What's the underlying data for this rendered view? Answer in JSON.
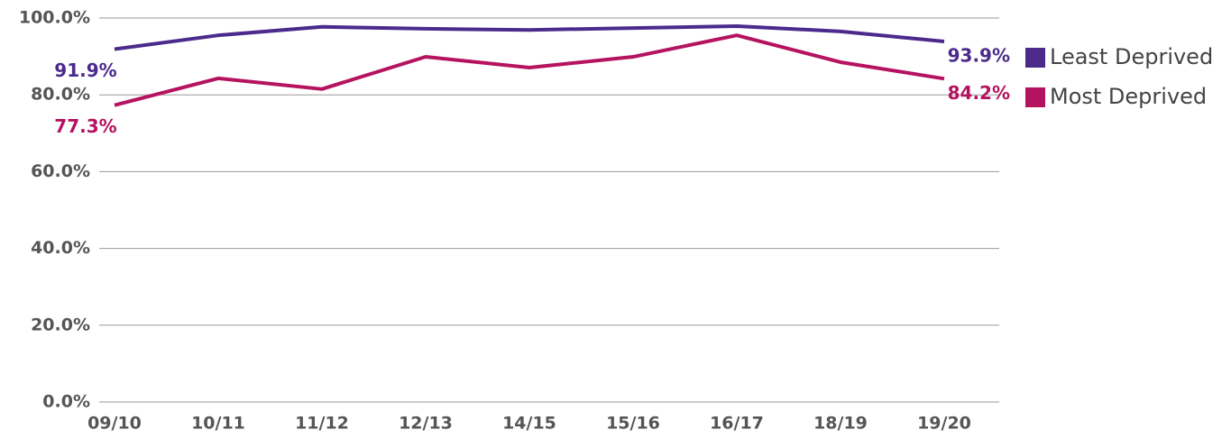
{
  "chart_data": {
    "type": "line",
    "categories": [
      "09/10",
      "10/11",
      "11/12",
      "12/13",
      "14/15",
      "15/16",
      "16/17",
      "18/19",
      "19/20"
    ],
    "series": [
      {
        "name": "Least Deprived",
        "color": "#4b2a8c",
        "values": [
          91.9,
          95.5,
          97.7,
          97.2,
          96.9,
          97.4,
          97.9,
          96.5,
          93.9
        ],
        "value_labels": [
          "91.9%",
          null,
          null,
          null,
          null,
          null,
          null,
          null,
          "93.9%"
        ]
      },
      {
        "name": "Most Deprived",
        "color": "#b5135f",
        "values": [
          77.3,
          84.3,
          81.5,
          89.9,
          87.1,
          89.9,
          95.5,
          88.5,
          84.2
        ],
        "value_labels": [
          "77.3%",
          null,
          null,
          null,
          null,
          null,
          null,
          null,
          "84.2%"
        ]
      }
    ],
    "ylim": [
      0,
      100
    ],
    "yticks": [
      {
        "value": 0,
        "label": "0.0%"
      },
      {
        "value": 20,
        "label": "20.0%"
      },
      {
        "value": 40,
        "label": "40.0%"
      },
      {
        "value": 60,
        "label": "60.0%"
      },
      {
        "value": 80,
        "label": "80.0%"
      },
      {
        "value": 100,
        "label": "100.0%"
      }
    ],
    "grid": true,
    "legend": "right"
  }
}
